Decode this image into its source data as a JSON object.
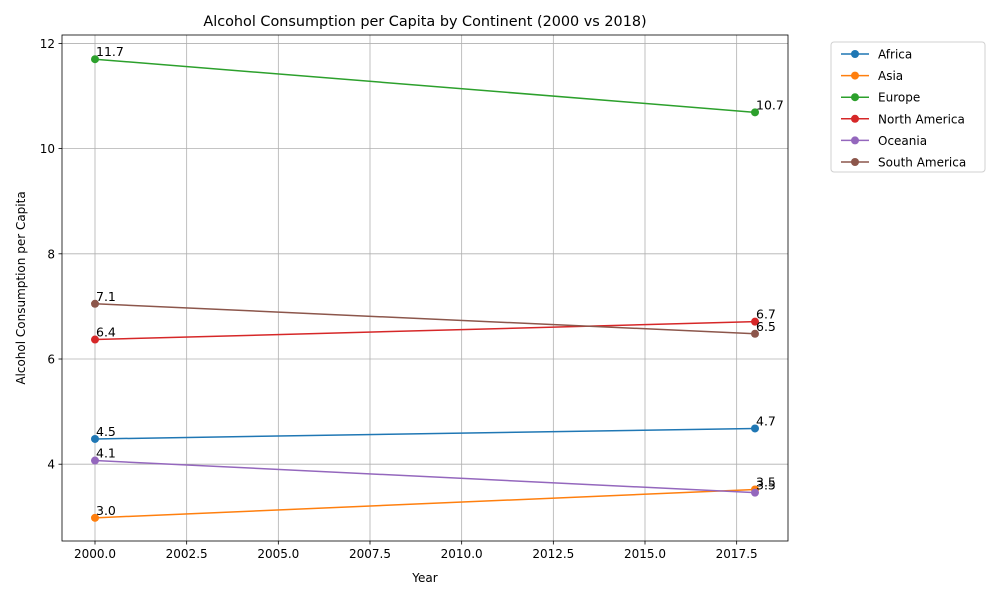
{
  "chart_data": {
    "type": "line",
    "title": "Alcohol Consumption per Capita by Continent (2000 vs 2018)",
    "xlabel": "Year",
    "ylabel": "Alcohol Consumption per Capita",
    "x": [
      2000,
      2018
    ],
    "xlim": [
      1999.1,
      2018.9
    ],
    "ylim": [
      2.54,
      12.16
    ],
    "xticks": [
      "2000.0",
      "2002.5",
      "2005.0",
      "2007.5",
      "2010.0",
      "2012.5",
      "2015.0",
      "2017.5"
    ],
    "xtick_values": [
      2000,
      2002.5,
      2005,
      2007.5,
      2010,
      2012.5,
      2015,
      2017.5
    ],
    "yticks": [
      "4",
      "6",
      "8",
      "10",
      "12"
    ],
    "ytick_values": [
      4,
      6,
      8,
      10,
      12
    ],
    "grid": true,
    "legend_position": "outside top-right",
    "series": [
      {
        "name": "Africa",
        "color": "#1f77b4",
        "values": [
          4.48,
          4.68
        ],
        "labels": [
          "4.5",
          "4.7"
        ]
      },
      {
        "name": "Asia",
        "color": "#ff7f0e",
        "values": [
          2.98,
          3.52
        ],
        "labels": [
          "3.0",
          "3.5"
        ]
      },
      {
        "name": "Europe",
        "color": "#2ca02c",
        "values": [
          11.7,
          10.69
        ],
        "labels": [
          "11.7",
          "10.7"
        ]
      },
      {
        "name": "North America",
        "color": "#d62728",
        "values": [
          6.37,
          6.71
        ],
        "labels": [
          "6.4",
          "6.7"
        ]
      },
      {
        "name": "Oceania",
        "color": "#9467bd",
        "values": [
          4.07,
          3.46
        ],
        "labels": [
          "4.1",
          "3.5"
        ]
      },
      {
        "name": "South America",
        "color": "#8c564b",
        "values": [
          7.05,
          6.48
        ],
        "labels": [
          "7.1",
          "6.5"
        ]
      }
    ]
  }
}
